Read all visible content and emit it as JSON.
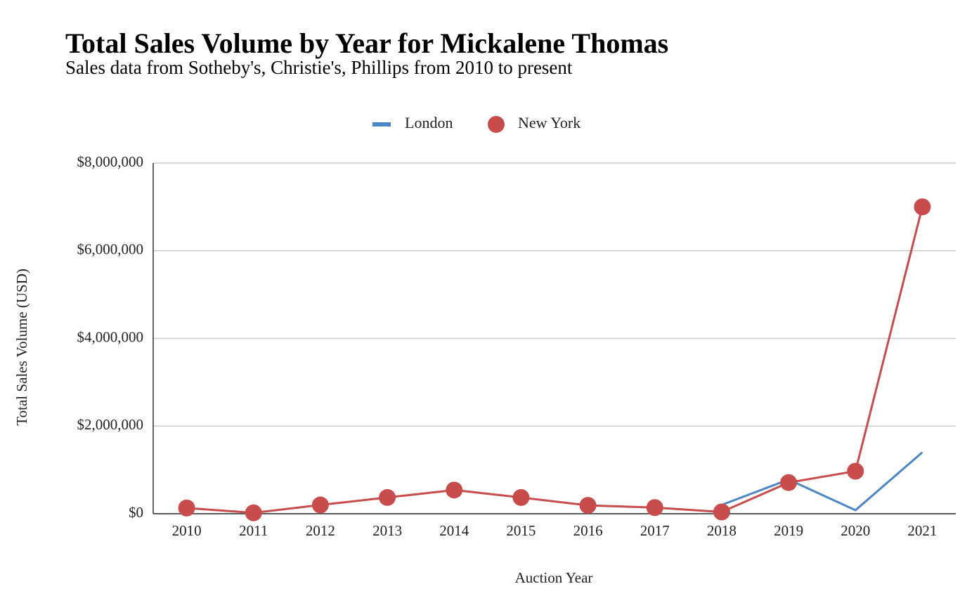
{
  "chart_data": {
    "type": "line",
    "title": "Total Sales Volume by Year for Mickalene Thomas",
    "subtitle": "Sales data from Sotheby's, Christie's, Phillips from 2010 to present",
    "x_label": "Auction Year",
    "y_label": "Total Sales Volume (USD)",
    "categories": [
      "2010",
      "2011",
      "2012",
      "2013",
      "2014",
      "2015",
      "2016",
      "2017",
      "2018",
      "2019",
      "2020",
      "2021"
    ],
    "series": [
      {
        "name": "London",
        "color": "#4a86c8",
        "markers": false,
        "values": [
          null,
          null,
          null,
          null,
          null,
          null,
          null,
          null,
          200000,
          780000,
          80000,
          1400000
        ]
      },
      {
        "name": "New York",
        "color": "#c94c4c",
        "markers": true,
        "values": [
          130000,
          20000,
          200000,
          370000,
          540000,
          370000,
          190000,
          140000,
          40000,
          710000,
          970000,
          7000000
        ]
      }
    ],
    "ylim": [
      0,
      8000000
    ],
    "yticks": [
      {
        "value": 0,
        "label": "$0"
      },
      {
        "value": 2000000,
        "label": "$2,000,000"
      },
      {
        "value": 4000000,
        "label": "$4,000,000"
      },
      {
        "value": 6000000,
        "label": "$6,000,000"
      },
      {
        "value": 8000000,
        "label": "$8,000,000"
      }
    ],
    "grid": true,
    "legend": "top"
  }
}
